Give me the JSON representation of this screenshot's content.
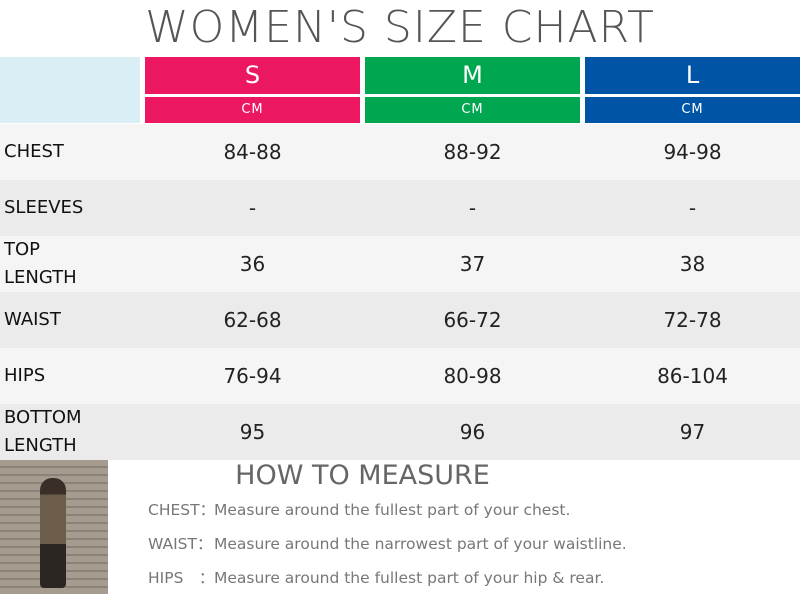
{
  "title": "WOMEN'S SIZE CHART",
  "colors": {
    "S": "#eb1760",
    "M": "#00a650",
    "L": "#0054a6",
    "header_blank": "#d9eef5",
    "row_light": "#f5f5f5",
    "row_dark": "#ebebeb"
  },
  "sizes": [
    {
      "label": "S",
      "unit": "CM"
    },
    {
      "label": "M",
      "unit": "CM"
    },
    {
      "label": "L",
      "unit": "CM"
    }
  ],
  "rows": [
    {
      "label": "CHEST",
      "values": [
        "84-88",
        "88-92",
        "94-98"
      ]
    },
    {
      "label": "SLEEVES",
      "values": [
        "-",
        "-",
        "-"
      ]
    },
    {
      "label": "TOP LENGTH",
      "values": [
        "36",
        "37",
        "38"
      ]
    },
    {
      "label": "WAIST",
      "values": [
        "62-68",
        "66-72",
        "72-78"
      ]
    },
    {
      "label": "HIPS",
      "values": [
        "76-94",
        "80-98",
        "86-104"
      ]
    },
    {
      "label": "BOTTOM LENGTH",
      "values": [
        "95",
        "96",
        "97"
      ]
    }
  ],
  "how_to": {
    "title": "HOW TO MEASURE",
    "items": [
      {
        "key": "CHEST：",
        "text": "Measure around the fullest part of your chest."
      },
      {
        "key": "WAIST：",
        "text": "Measure around the narrowest part of your waistline."
      },
      {
        "key": "HIPS　：",
        "text": "Measure around the fullest part of your hip & rear."
      }
    ]
  }
}
